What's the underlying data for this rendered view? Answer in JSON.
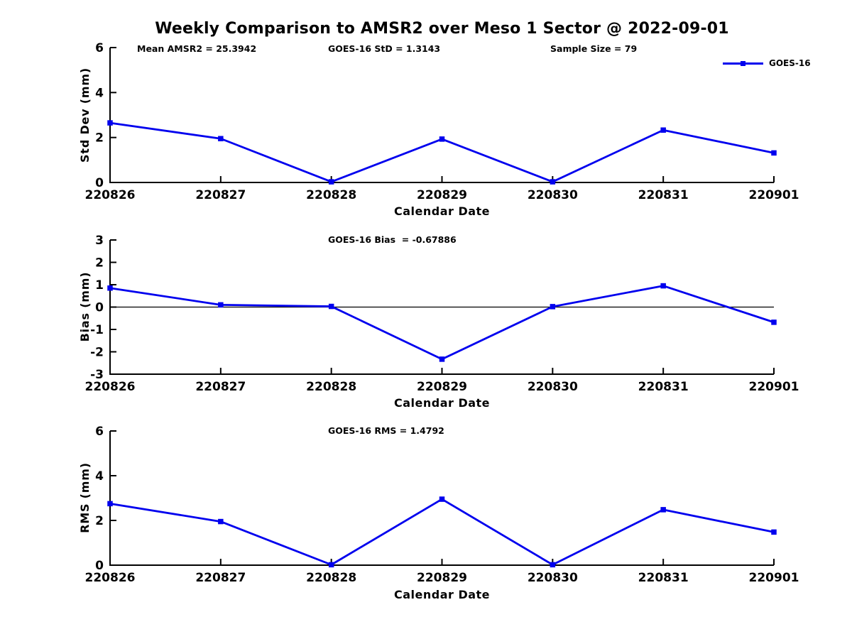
{
  "header": {
    "title": "Weekly Comparison to AMSR2 over Meso 1 Sector @ 2022-09-01"
  },
  "chart_data": [
    {
      "id": "std-dev",
      "type": "line",
      "annotations": [
        "Mean AMSR2 = 25.3942",
        "GOES-16 StD = 1.3143",
        "Sample Size = 79"
      ],
      "categories": [
        "220826",
        "220827",
        "220828",
        "220829",
        "220830",
        "220831",
        "220901"
      ],
      "series": [
        {
          "name": "GOES-16",
          "color": "#0000EE",
          "marker": "square",
          "values": [
            2.65,
            1.95,
            0.03,
            1.93,
            0.03,
            2.33,
            1.3143
          ]
        }
      ],
      "xlabel": "Calendar Date",
      "ylabel": "Std Dev (mm)",
      "ylim": [
        0,
        6
      ],
      "yticks": [
        0,
        2,
        4,
        6
      ],
      "zero_line": false,
      "grid": false,
      "legend_position": "top-right"
    },
    {
      "id": "bias",
      "type": "line",
      "title": "GOES-16 Bias  = -0.67886",
      "categories": [
        "220826",
        "220827",
        "220828",
        "220829",
        "220830",
        "220831",
        "220901"
      ],
      "series": [
        {
          "name": "GOES-16",
          "color": "#0000EE",
          "marker": "square",
          "values": [
            0.85,
            0.1,
            0.03,
            -2.33,
            0.02,
            0.95,
            -0.67886
          ]
        }
      ],
      "xlabel": "Calendar Date",
      "ylabel": "Bias (mm)",
      "ylim": [
        -3,
        3
      ],
      "yticks": [
        -3,
        -2,
        -1,
        0,
        1,
        2,
        3
      ],
      "zero_line": true,
      "grid": false
    },
    {
      "id": "rms",
      "type": "line",
      "title": "GOES-16 RMS = 1.4792",
      "categories": [
        "220826",
        "220827",
        "220828",
        "220829",
        "220830",
        "220831",
        "220901"
      ],
      "series": [
        {
          "name": "GOES-16",
          "color": "#0000EE",
          "marker": "square",
          "values": [
            2.75,
            1.95,
            0.02,
            2.95,
            0.02,
            2.48,
            1.4792
          ]
        }
      ],
      "xlabel": "Calendar Date",
      "ylabel": "RMS (mm)",
      "ylim": [
        0,
        6
      ],
      "yticks": [
        0,
        2,
        4,
        6
      ],
      "zero_line": false,
      "grid": false
    }
  ],
  "colors": {
    "line": "#0000EE",
    "axis": "#000000",
    "background": "#FFFFFF"
  }
}
